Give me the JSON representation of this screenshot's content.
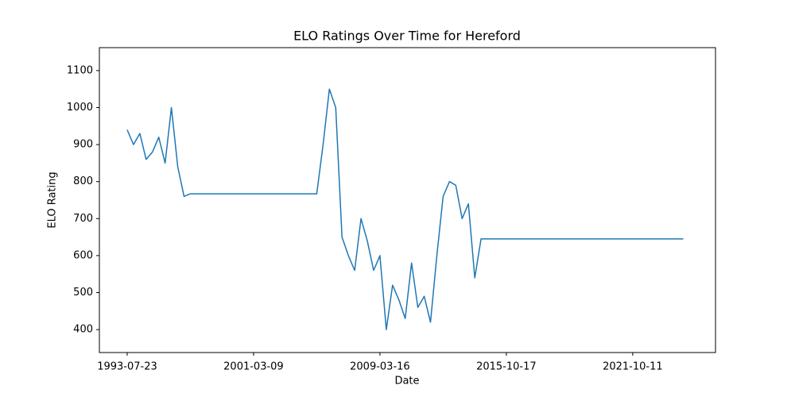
{
  "chart_data": {
    "type": "line",
    "title": "ELO Ratings Over Time for Hereford",
    "x_label": "Date",
    "y_label": "ELO Rating",
    "categories": [
      "1993-07-23",
      null,
      null,
      null,
      null,
      null,
      null,
      null,
      null,
      null,
      null,
      null,
      null,
      null,
      null,
      null,
      null,
      null,
      null,
      null,
      "2001-03-09",
      null,
      null,
      null,
      null,
      null,
      null,
      null,
      null,
      null,
      null,
      null,
      null,
      null,
      null,
      null,
      null,
      null,
      null,
      null,
      "2009-03-16",
      null,
      null,
      null,
      null,
      null,
      null,
      null,
      null,
      null,
      null,
      null,
      null,
      null,
      null,
      null,
      null,
      null,
      null,
      null,
      "2015-10-17",
      null,
      null,
      null,
      null,
      null,
      null,
      null,
      null,
      null,
      null,
      null,
      null,
      null,
      null,
      null,
      null,
      null,
      null,
      null,
      "2021-10-11",
      null,
      null,
      null,
      null,
      null,
      null,
      null,
      null
    ],
    "series": [
      {
        "color": "#1f77b4",
        "values": [
          940,
          900,
          930,
          860,
          880,
          920,
          850,
          1000,
          840,
          760,
          767,
          767,
          767,
          767,
          767,
          767,
          767,
          767,
          767,
          767,
          767,
          767,
          767,
          767,
          767,
          767,
          767,
          767,
          767,
          767,
          767,
          900,
          1050,
          1000,
          650,
          600,
          560,
          700,
          640,
          560,
          600,
          400,
          520,
          480,
          430,
          580,
          460,
          490,
          420,
          600,
          760,
          800,
          790,
          700,
          740,
          540,
          645,
          645,
          645,
          645,
          645,
          645,
          645,
          645,
          645,
          645,
          645,
          645,
          645,
          645,
          645,
          645,
          645,
          645,
          645,
          645,
          645,
          645,
          645,
          645,
          645,
          645,
          645,
          645,
          645,
          645,
          645,
          645,
          645
        ]
      }
    ],
    "xlim": [
      -4.4,
      93.1
    ],
    "ylim": [
      338,
      1162
    ],
    "yticks": [
      400,
      500,
      600,
      700,
      800,
      900,
      1000,
      1100
    ]
  }
}
